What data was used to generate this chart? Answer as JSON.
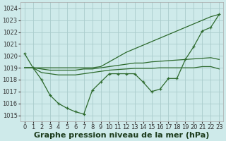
{
  "x": [
    0,
    1,
    2,
    3,
    4,
    5,
    6,
    7,
    8,
    9,
    10,
    11,
    12,
    13,
    14,
    15,
    16,
    17,
    18,
    19,
    20,
    21,
    22,
    23
  ],
  "line_main": [
    1020.2,
    1019.0,
    1018.0,
    1016.7,
    1016.0,
    1015.6,
    1015.3,
    1015.1,
    1017.1,
    1017.8,
    1018.5,
    1018.5,
    1018.5,
    1018.5,
    1017.8,
    1017.0,
    1017.2,
    1018.1,
    1018.1,
    1019.7,
    1020.8,
    1022.1,
    1022.4,
    1023.5
  ],
  "line_upper": [
    1019.0,
    1019.0,
    1019.0,
    1019.0,
    1019.0,
    1019.0,
    1019.0,
    1019.0,
    1019.0,
    1019.1,
    1019.5,
    1019.9,
    1020.3,
    1020.6,
    1020.9,
    1021.2,
    1021.5,
    1021.8,
    1022.1,
    1022.4,
    1022.7,
    1023.0,
    1023.3,
    1023.5
  ],
  "line_mid1": [
    1019.0,
    1019.0,
    1018.9,
    1018.8,
    1018.8,
    1018.8,
    1018.8,
    1018.9,
    1018.9,
    1019.0,
    1019.1,
    1019.2,
    1019.3,
    1019.4,
    1019.4,
    1019.5,
    1019.55,
    1019.6,
    1019.65,
    1019.7,
    1019.75,
    1019.8,
    1019.85,
    1019.7
  ],
  "line_mid2": [
    1019.0,
    1019.0,
    1018.6,
    1018.5,
    1018.4,
    1018.4,
    1018.4,
    1018.5,
    1018.6,
    1018.7,
    1018.8,
    1018.85,
    1018.9,
    1018.95,
    1018.95,
    1018.95,
    1019.0,
    1019.0,
    1019.0,
    1019.0,
    1019.0,
    1019.1,
    1019.1,
    1018.9
  ],
  "ylim": [
    1014.5,
    1024.5
  ],
  "xlim": [
    -0.5,
    23.5
  ],
  "yticks": [
    1015,
    1016,
    1017,
    1018,
    1019,
    1020,
    1021,
    1022,
    1023,
    1024
  ],
  "xticks": [
    0,
    1,
    2,
    3,
    4,
    5,
    6,
    7,
    8,
    9,
    10,
    11,
    12,
    13,
    14,
    15,
    16,
    17,
    18,
    19,
    20,
    21,
    22,
    23
  ],
  "line_color": "#2d6a2d",
  "bg_color": "#ceeaea",
  "grid_color": "#b8d8d8",
  "xlabel": "Graphe pression niveau de la mer (hPa)",
  "xlabel_color": "#1a3a1a",
  "tick_fontsize": 6.0,
  "xlabel_fontsize": 8.0
}
